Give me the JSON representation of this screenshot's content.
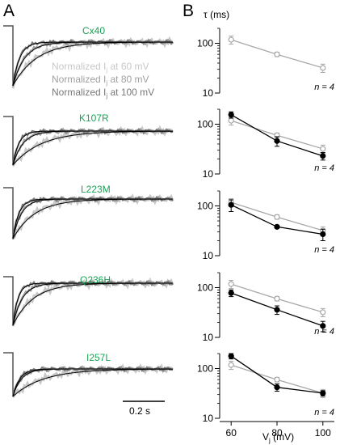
{
  "panel_labels": {
    "a": "A",
    "b": "B"
  },
  "legend": {
    "line_60": "Normalized I",
    "line_80": "Normalized I",
    "line_100": "Normalized I",
    "sub": "j",
    "suffix_60": " at 60 mV",
    "suffix_80": " at 80 mV",
    "suffix_100": " at 100 mV",
    "colors": {
      "60": "#c8c8c8",
      "80": "#a0a0a0",
      "100": "#787878"
    }
  },
  "scale_bar": {
    "label": "0.2 s"
  },
  "chart_data": [
    {
      "type": "line",
      "title": "Cx40",
      "x": [
        60,
        80,
        100
      ],
      "series": [
        {
          "name": "Cx40",
          "color": "#a8a8a8",
          "marker": "open",
          "values": [
            118,
            60,
            32
          ],
          "err": [
            22,
            6,
            6
          ]
        }
      ],
      "n_label": "n = 4",
      "yscale": "log",
      "ylim": [
        10,
        200
      ],
      "xlim": [
        55,
        105
      ]
    },
    {
      "type": "line",
      "title": "K107R",
      "x": [
        60,
        80,
        100
      ],
      "series": [
        {
          "name": "Cx40",
          "color": "#a8a8a8",
          "marker": "open",
          "values": [
            118,
            60,
            32
          ],
          "err": [
            22,
            6,
            6
          ]
        },
        {
          "name": "K107R",
          "color": "#000000",
          "marker": "filled",
          "values": [
            155,
            46,
            23
          ],
          "err": [
            22,
            10,
            4
          ]
        }
      ],
      "n_label": "n = 4",
      "yscale": "log",
      "ylim": [
        10,
        200
      ],
      "xlim": [
        55,
        105
      ]
    },
    {
      "type": "line",
      "title": "L223M",
      "x": [
        60,
        80,
        100
      ],
      "series": [
        {
          "name": "Cx40",
          "color": "#a8a8a8",
          "marker": "open",
          "values": [
            118,
            60,
            32
          ],
          "err": [
            22,
            6,
            6
          ]
        },
        {
          "name": "L223M",
          "color": "#000000",
          "marker": "filled",
          "values": [
            105,
            38,
            27
          ],
          "err": [
            28,
            2,
            7
          ]
        }
      ],
      "n_label": "n = 4",
      "yscale": "log",
      "ylim": [
        10,
        200
      ],
      "xlim": [
        55,
        105
      ]
    },
    {
      "type": "line",
      "title": "Q236H",
      "x": [
        60,
        80,
        100
      ],
      "series": [
        {
          "name": "Cx40",
          "color": "#a8a8a8",
          "marker": "open",
          "values": [
            118,
            60,
            32
          ],
          "err": [
            22,
            6,
            6
          ]
        },
        {
          "name": "Q236H",
          "color": "#000000",
          "marker": "filled",
          "values": [
            78,
            36,
            17
          ],
          "err": [
            12,
            7,
            4
          ]
        }
      ],
      "n_label": "n = 4",
      "yscale": "log",
      "ylim": [
        10,
        200
      ],
      "xlim": [
        55,
        105
      ]
    },
    {
      "type": "line",
      "title": "I257L",
      "x": [
        60,
        80,
        100
      ],
      "series": [
        {
          "name": "Cx40",
          "color": "#a8a8a8",
          "marker": "open",
          "values": [
            118,
            60,
            32
          ],
          "err": [
            22,
            6,
            6
          ]
        },
        {
          "name": "I257L",
          "color": "#000000",
          "marker": "filled",
          "values": [
            178,
            42,
            32
          ],
          "err": [
            22,
            7,
            4
          ]
        }
      ],
      "n_label": "n = 4",
      "yscale": "log",
      "ylim": [
        10,
        200
      ],
      "xlim": [
        55,
        105
      ]
    }
  ],
  "y_ticks": [
    "100",
    "10"
  ],
  "x_ticks": [
    "60",
    "80",
    "100"
  ],
  "y_axis_title": "τ (ms)",
  "x_axis_title": {
    "main": "V",
    "sub": "j",
    "suffix": " (mV)"
  }
}
